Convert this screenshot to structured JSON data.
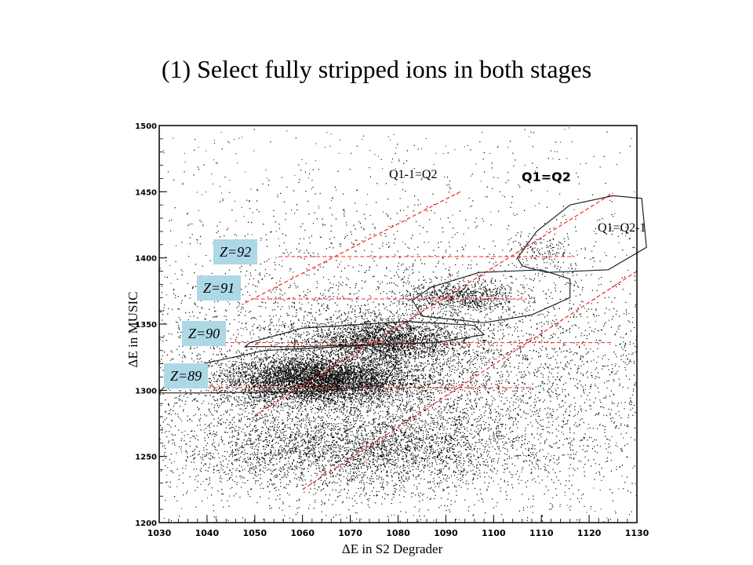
{
  "slide": {
    "title": "(1) Select fully stripped ions in both stages"
  },
  "chart_data": {
    "type": "scatter",
    "xlabel": "ΔE in S2 Degrader",
    "ylabel": "ΔE in MUSIC",
    "xlim": [
      1030,
      1130
    ],
    "ylim": [
      1200,
      1500
    ],
    "xticks": [
      1030,
      1040,
      1050,
      1060,
      1070,
      1080,
      1090,
      1100,
      1110,
      1120,
      1130
    ],
    "yticks": [
      1200,
      1250,
      1300,
      1350,
      1400,
      1450,
      1500
    ],
    "z_labels": [
      {
        "text": "Z=92",
        "y": 1401
      },
      {
        "text": "Z=91",
        "y": 1369
      },
      {
        "text": "Z=90",
        "y": 1336
      },
      {
        "text": "Z=89",
        "y": 1302
      }
    ],
    "annotations": [
      {
        "text": "Q1-1=Q2"
      },
      {
        "text": "Q1=Q2"
      },
      {
        "text": "Q1=Q2-1"
      }
    ],
    "charge_state_lines": [
      {
        "label": "Q1-1=Q2",
        "points": [
          [
            1048,
            1366
          ],
          [
            1093,
            1450
          ]
        ]
      },
      {
        "label": "Q1=Q2",
        "points": [
          [
            1050,
            1281
          ],
          [
            1125,
            1449
          ]
        ]
      },
      {
        "label": "Q1=Q2-1",
        "points": [
          [
            1060,
            1225
          ],
          [
            1130,
            1390
          ]
        ]
      }
    ],
    "density_clusters": [
      {
        "x": 1063,
        "y": 1308,
        "sx": 10,
        "sy": 9,
        "n": 5200
      },
      {
        "x": 1077,
        "y": 1338,
        "sx": 8,
        "sy": 8,
        "n": 2200
      },
      {
        "x": 1093,
        "y": 1371,
        "sx": 6,
        "sy": 6,
        "n": 700
      },
      {
        "x": 1110,
        "y": 1405,
        "sx": 4,
        "sy": 7,
        "n": 140
      },
      {
        "x": 1070,
        "y": 1255,
        "sx": 18,
        "sy": 14,
        "n": 2600
      },
      {
        "x": 1080,
        "y": 1300,
        "sx": 28,
        "sy": 45,
        "n": 6000
      },
      {
        "x": 1080,
        "y": 1340,
        "sx": 40,
        "sy": 70,
        "n": 2800
      }
    ],
    "gates": [
      {
        "name": "Z=92",
        "points": [
          [
            1105,
            1400
          ],
          [
            1109,
            1420
          ],
          [
            1116,
            1440
          ],
          [
            1125,
            1447
          ],
          [
            1131,
            1445
          ],
          [
            1132,
            1408
          ],
          [
            1124,
            1391
          ],
          [
            1111,
            1389
          ],
          [
            1106,
            1394
          ]
        ]
      },
      {
        "name": "Z=91",
        "points": [
          [
            1083,
            1368
          ],
          [
            1087,
            1378
          ],
          [
            1097,
            1389
          ],
          [
            1110,
            1391
          ],
          [
            1116,
            1384
          ],
          [
            1116,
            1370
          ],
          [
            1108,
            1357
          ],
          [
            1098,
            1351
          ],
          [
            1085,
            1356
          ]
        ]
      },
      {
        "name": "Z=90",
        "points": [
          [
            1049,
            1336
          ],
          [
            1060,
            1347
          ],
          [
            1082,
            1352
          ],
          [
            1096,
            1349
          ],
          [
            1098,
            1342
          ],
          [
            1088,
            1336
          ],
          [
            1060,
            1333
          ],
          [
            1048,
            1333
          ]
        ]
      },
      {
        "name": "Z=89",
        "points": [
          [
            1030,
            1298
          ],
          [
            1034,
            1316
          ],
          [
            1052,
            1330
          ],
          [
            1074,
            1334
          ],
          [
            1080,
            1322
          ],
          [
            1077,
            1304
          ],
          [
            1062,
            1299
          ],
          [
            1040,
            1298
          ]
        ]
      }
    ]
  }
}
